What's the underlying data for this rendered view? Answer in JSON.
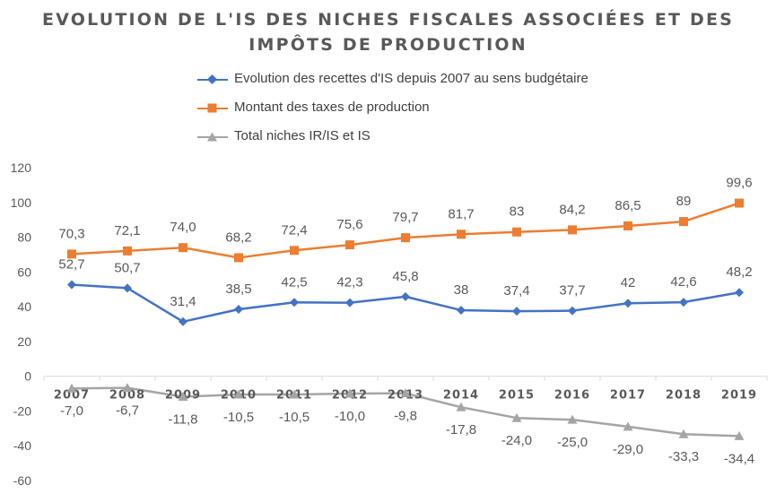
{
  "chart_data": {
    "type": "line",
    "title": "EVOLUTION DE L'IS DES NICHES FISCALES ASSOCIÉES ET DES IMPÔTS DE PRODUCTION",
    "title_lines": [
      "EVOLUTION DE L'IS DES NICHES FISCALES ASSOCIÉES ET DES",
      "IMPÔTS DE PRODUCTION"
    ],
    "x": [
      "2007",
      "2008",
      "2009",
      "2010",
      "2011",
      "2012",
      "2013",
      "2014",
      "2015",
      "2016",
      "2017",
      "2018",
      "2019"
    ],
    "ylim": [
      -60,
      120
    ],
    "yticks": [
      "-60",
      "-40",
      "-20",
      "0",
      "20",
      "40",
      "60",
      "80",
      "100",
      "120"
    ],
    "grid": false,
    "legend_position": "top",
    "series": [
      {
        "name": "Evolution des recettes d'IS depuis 2007 au sens budgétaire",
        "color": "#4472C4",
        "marker": "diamond",
        "values": [
          52.7,
          50.7,
          31.4,
          38.5,
          42.5,
          42.3,
          45.8,
          38,
          37.4,
          37.7,
          42,
          42.6,
          48.2
        ],
        "labels": [
          "52,7",
          "50,7",
          "31,4",
          "38,5",
          "42,5",
          "42,3",
          "45,8",
          "38",
          "37,4",
          "37,7",
          "42",
          "42,6",
          "48,2"
        ]
      },
      {
        "name": "Montant des taxes de production",
        "color": "#ED7D31",
        "marker": "square",
        "values": [
          70.3,
          72.1,
          74.0,
          68.2,
          72.4,
          75.6,
          79.7,
          81.7,
          83,
          84.2,
          86.5,
          89,
          99.6
        ],
        "labels": [
          "70,3",
          "72,1",
          "74,0",
          "68,2",
          "72,4",
          "75,6",
          "79,7",
          "81,7",
          "83",
          "84,2",
          "86,5",
          "89",
          "99,6"
        ]
      },
      {
        "name": "Total niches IR/IS et IS",
        "color": "#A5A5A5",
        "marker": "triangle",
        "values": [
          -7.0,
          -6.7,
          -11.8,
          -10.5,
          -10.5,
          -10.0,
          -9.8,
          -17.8,
          -24.0,
          -25.0,
          -29.0,
          -33.3,
          -34.4
        ],
        "labels": [
          "-7,0",
          "-6,7",
          "-11,8",
          "-10,5",
          "-10,5",
          "-10,0",
          "-9,8",
          "-17,8",
          "-24,0",
          "-25,0",
          "-29,0",
          "-33,3",
          "-34,4"
        ]
      }
    ]
  }
}
